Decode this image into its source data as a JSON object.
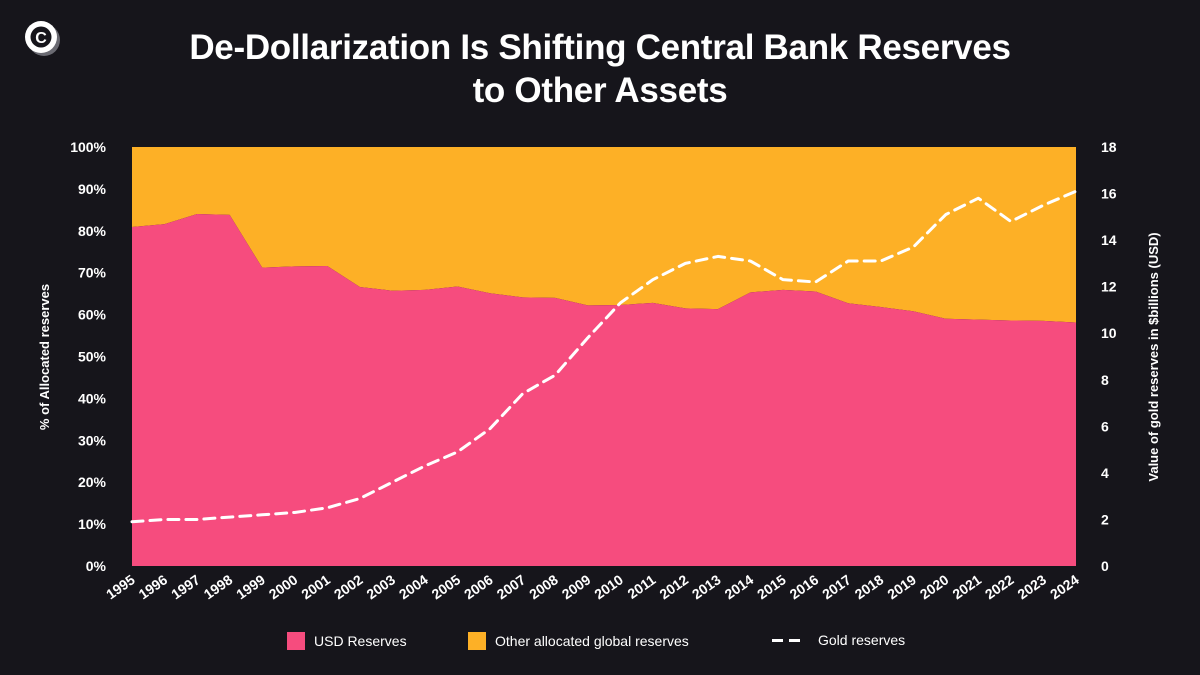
{
  "title_line1": "De-Dollarization Is Shifting Central Bank Reserves",
  "title_line2": "to Other Assets",
  "logo": {
    "icon": "c-coin-logo"
  },
  "colors": {
    "usd": "#f64c7e",
    "other": "#fdb026",
    "gold_line": "#ffffff",
    "background": "#16151b"
  },
  "legend": {
    "usd": "USD Reserves",
    "other": "Other allocated global reserves",
    "gold": "Gold reserves"
  },
  "chart_data": {
    "type": "area",
    "stacked_percent": true,
    "categories": [
      "1995",
      "1996",
      "1997",
      "1998",
      "1999",
      "2000",
      "2001",
      "2002",
      "2003",
      "2004",
      "2005",
      "2006",
      "2007",
      "2008",
      "2009",
      "2010",
      "2011",
      "2012",
      "2013",
      "2014",
      "2015",
      "2016",
      "2017",
      "2018",
      "2019",
      "2020",
      "2021",
      "2022",
      "2023",
      "2024"
    ],
    "series": [
      {
        "name": "USD Reserves",
        "axis": "left",
        "values": [
          80.9,
          81.6,
          84,
          83.8,
          71.2,
          71.5,
          71.6,
          66.6,
          65.7,
          65.9,
          66.7,
          65.1,
          64.1,
          64.0,
          62.2,
          62.3,
          62.8,
          61.5,
          61.3,
          65.3,
          65.9,
          65.5,
          62.7,
          61.8,
          60.8,
          59.0,
          58.8,
          58.6,
          58.5,
          58.1
        ]
      },
      {
        "name": "Other allocated global reserves",
        "axis": "left",
        "values": [
          19.1,
          18.4,
          16,
          16.2,
          28.8,
          28.5,
          28.4,
          33.4,
          34.3,
          34.1,
          33.3,
          34.9,
          35.9,
          36.0,
          37.8,
          37.7,
          37.2,
          38.5,
          38.7,
          34.7,
          34.1,
          34.5,
          37.3,
          38.2,
          39.2,
          41.0,
          41.2,
          41.4,
          41.5,
          41.9
        ]
      },
      {
        "name": "Gold reserves",
        "axis": "right",
        "style": "dashed-line",
        "values": [
          1.9,
          2.0,
          2.0,
          2.1,
          2.2,
          2.3,
          2.5,
          2.9,
          3.6,
          4.3,
          4.9,
          5.9,
          7.4,
          8.2,
          9.8,
          11.3,
          12.3,
          13.0,
          13.3,
          13.1,
          12.3,
          12.2,
          13.1,
          13.1,
          13.7,
          15.1,
          15.8,
          14.8,
          15.5,
          16.1
        ]
      }
    ],
    "ylabel_left": "% of Allocated reserves",
    "ylabel_right": "Value of gold reserves in $billions (USD)",
    "ylim_left": [
      0,
      100
    ],
    "ylim_right": [
      0,
      18
    ],
    "yticks_left": [
      "0%",
      "10%",
      "20%",
      "30%",
      "40%",
      "50%",
      "60%",
      "70%",
      "80%",
      "90%",
      "100%"
    ],
    "yticks_right": [
      "0",
      "2",
      "4",
      "6",
      "8",
      "10",
      "12",
      "14",
      "16",
      "18"
    ],
    "grid": false,
    "legend_position": "bottom"
  }
}
